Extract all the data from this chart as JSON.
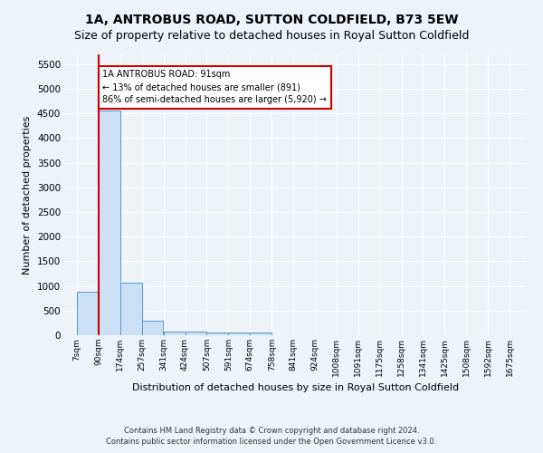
{
  "title": "1A, ANTROBUS ROAD, SUTTON COLDFIELD, B73 5EW",
  "subtitle": "Size of property relative to detached houses in Royal Sutton Coldfield",
  "xlabel": "Distribution of detached houses by size in Royal Sutton Coldfield",
  "ylabel": "Number of detached properties",
  "footer_line1": "Contains HM Land Registry data © Crown copyright and database right 2024.",
  "footer_line2": "Contains public sector information licensed under the Open Government Licence v3.0.",
  "bin_labels": [
    "7sqm",
    "90sqm",
    "174sqm",
    "257sqm",
    "341sqm",
    "424sqm",
    "507sqm",
    "591sqm",
    "674sqm",
    "758sqm",
    "841sqm",
    "924sqm",
    "1008sqm",
    "1091sqm",
    "1175sqm",
    "1258sqm",
    "1341sqm",
    "1425sqm",
    "1508sqm",
    "1592sqm",
    "1675sqm"
  ],
  "bin_edges": [
    7,
    90,
    174,
    257,
    341,
    424,
    507,
    591,
    674,
    758,
    841,
    924,
    1008,
    1091,
    1175,
    1258,
    1341,
    1425,
    1508,
    1592,
    1675
  ],
  "bar_heights": [
    880,
    4560,
    1060,
    290,
    80,
    80,
    50,
    50,
    50,
    0,
    0,
    0,
    0,
    0,
    0,
    0,
    0,
    0,
    0,
    0
  ],
  "bar_color": "#cce0f5",
  "bar_edge_color": "#5599cc",
  "property_size": 91,
  "red_line_color": "#cc0000",
  "annotation_line1": "1A ANTROBUS ROAD: 91sqm",
  "annotation_line2": "← 13% of detached houses are smaller (891)",
  "annotation_line3": "86% of semi-detached houses are larger (5,920) →",
  "annotation_box_color": "#ffffff",
  "annotation_box_edge": "#cc0000",
  "ylim": [
    0,
    5700
  ],
  "yticks": [
    0,
    500,
    1000,
    1500,
    2000,
    2500,
    3000,
    3500,
    4000,
    4500,
    5000,
    5500
  ],
  "background_color": "#eef3f8",
  "grid_color": "#ffffff",
  "title_fontsize": 10,
  "subtitle_fontsize": 9
}
